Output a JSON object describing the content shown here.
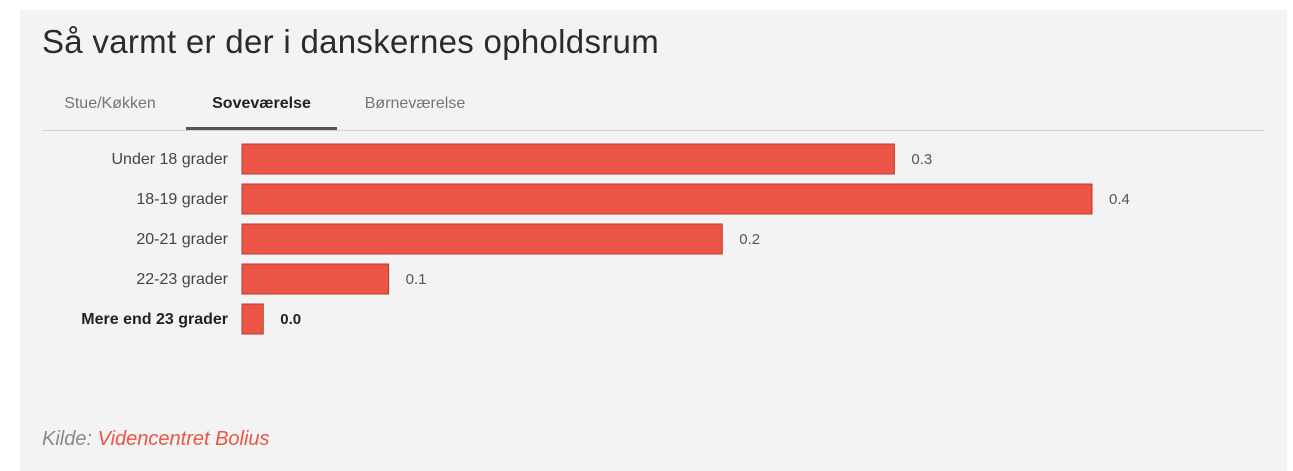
{
  "title": "Så varmt er der i danskernes opholdsrum",
  "tabs": [
    {
      "label": "Stue/Køkken",
      "active": false
    },
    {
      "label": "Soveværelse",
      "active": true
    },
    {
      "label": "Børneværelse",
      "active": false
    }
  ],
  "source": {
    "prefix": "Kilde:",
    "link_text": "Videncentret Bolius"
  },
  "colors": {
    "bar": "#ec5545",
    "bar_border": "#b83a2e",
    "source_link": "#ec5545",
    "background": "#f3f3f3"
  },
  "chart_data": {
    "type": "bar",
    "orientation": "horizontal",
    "title": "",
    "xlabel": "",
    "ylabel": "",
    "categories": [
      "Under 18 grader",
      "18-19 grader",
      "20-21 grader",
      "22-23 grader",
      "Mere end 23 grader"
    ],
    "values": [
      0.307,
      0.4,
      0.226,
      0.069,
      0.01
    ],
    "value_labels": [
      "0.3",
      "0.4",
      "0.2",
      "0.1",
      "0.0"
    ],
    "highlighted_category": "Mere end 23 grader",
    "xlim": [
      0,
      0.4
    ],
    "grid": false,
    "legend": "none"
  }
}
